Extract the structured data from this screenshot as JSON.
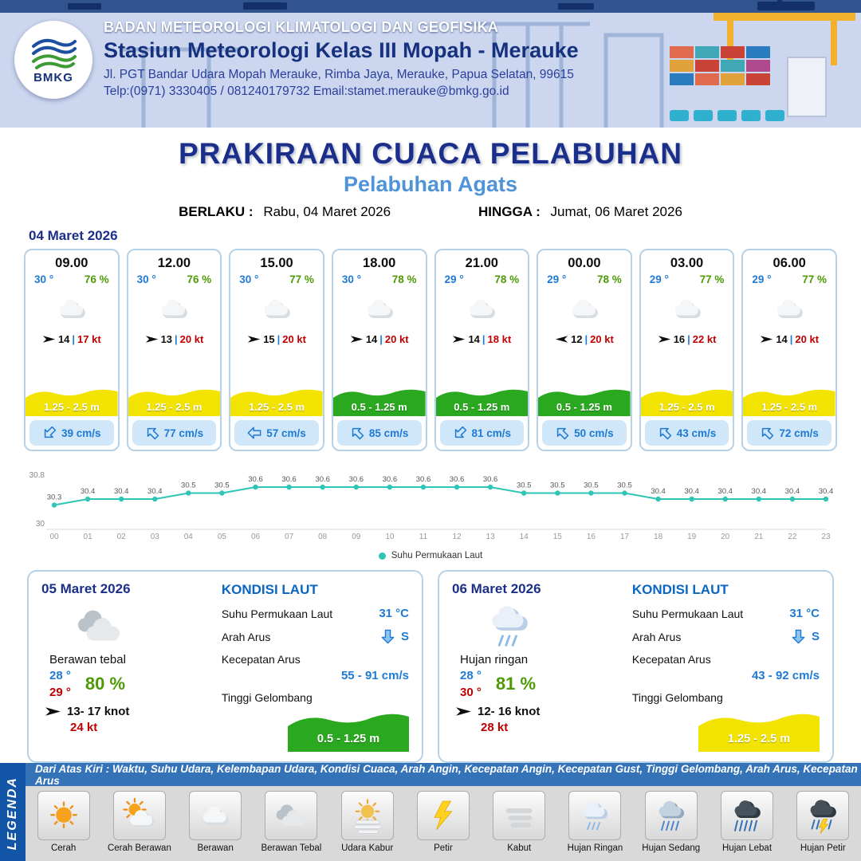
{
  "header": {
    "logo_text": "BMKG",
    "agency": "BADAN METEOROLOGI KLIMATOLOGI DAN GEOFISIKA",
    "station": "Stasiun Meteorologi Kelas III Mopah - Merauke",
    "address": "Jl. PGT Bandar Udara Mopah Merauke, Rimba Jaya, Merauke, Papua Selatan, 99615",
    "contact": "Telp:(0971) 3330405 / 081240179732  Email:stamet.merauke@bmkg.go.id"
  },
  "title": {
    "main": "PRAKIRAAN CUACA PELABUHAN",
    "sub": "Pelabuhan Agats",
    "valid_label": "BERLAKU :",
    "valid_value": "Rabu, 04 Maret 2026",
    "until_label": "HINGGA :",
    "until_value": "Jumat, 06 Maret 2026"
  },
  "forecast": {
    "date": "04 Maret 2026",
    "wind_separator": "|",
    "cards": [
      {
        "time": "09.00",
        "temp": "30 °",
        "humidity": "76 %",
        "wind_speed": "14",
        "wind_gust": "17 kt",
        "wind_dir": "right",
        "wave_value": "1.25 - 2.5 m",
        "wave_hex": "#f2e300",
        "current_value": "39 cm/s",
        "current_deg": 225
      },
      {
        "time": "12.00",
        "temp": "30 °",
        "humidity": "76 %",
        "wind_speed": "13",
        "wind_gust": "20 kt",
        "wind_dir": "right",
        "wave_value": "1.25 - 2.5 m",
        "wave_hex": "#f2e300",
        "current_value": "77 cm/s",
        "current_deg": 315
      },
      {
        "time": "15.00",
        "temp": "30 °",
        "humidity": "77 %",
        "wind_speed": "15",
        "wind_gust": "20 kt",
        "wind_dir": "right",
        "wave_value": "1.25 - 2.5 m",
        "wave_hex": "#f2e300",
        "current_value": "57 cm/s",
        "current_deg": 270
      },
      {
        "time": "18.00",
        "temp": "30 °",
        "humidity": "78 %",
        "wind_speed": "14",
        "wind_gust": "20 kt",
        "wind_dir": "right",
        "wave_value": "0.5 - 1.25 m",
        "wave_hex": "#2aa81f",
        "current_value": "85 cm/s",
        "current_deg": 315
      },
      {
        "time": "21.00",
        "temp": "29 °",
        "humidity": "78 %",
        "wind_speed": "14",
        "wind_gust": "18 kt",
        "wind_dir": "right",
        "wave_value": "0.5 - 1.25 m",
        "wave_hex": "#2aa81f",
        "current_value": "81 cm/s",
        "current_deg": 225
      },
      {
        "time": "00.00",
        "temp": "29 °",
        "humidity": "78 %",
        "wind_speed": "12",
        "wind_gust": "20 kt",
        "wind_dir": "left",
        "wave_value": "0.5 - 1.25 m",
        "wave_hex": "#2aa81f",
        "current_value": "50 cm/s",
        "current_deg": 315
      },
      {
        "time": "03.00",
        "temp": "29 °",
        "humidity": "77 %",
        "wind_speed": "16",
        "wind_gust": "22 kt",
        "wind_dir": "right",
        "wave_value": "1.25 - 2.5 m",
        "wave_hex": "#f2e300",
        "current_value": "43 cm/s",
        "current_deg": 315
      },
      {
        "time": "06.00",
        "temp": "29 °",
        "humidity": "77 %",
        "wind_speed": "14",
        "wind_gust": "20 kt",
        "wind_dir": "right",
        "wave_value": "1.25 - 2.5 m",
        "wave_hex": "#f2e300",
        "current_value": "72 cm/s",
        "current_deg": 315
      }
    ]
  },
  "chart_data": {
    "type": "line",
    "legend_label": "Suhu Permukaan Laut",
    "x": [
      "00",
      "01",
      "02",
      "03",
      "04",
      "05",
      "06",
      "07",
      "08",
      "09",
      "10",
      "11",
      "12",
      "13",
      "14",
      "15",
      "16",
      "17",
      "18",
      "19",
      "20",
      "21",
      "22",
      "23"
    ],
    "values": [
      30.3,
      30.4,
      30.4,
      30.4,
      30.5,
      30.5,
      30.6,
      30.6,
      30.6,
      30.6,
      30.6,
      30.6,
      30.6,
      30.6,
      30.5,
      30.5,
      30.5,
      30.5,
      30.4,
      30.4,
      30.4,
      30.4,
      30.4,
      30.4
    ],
    "ylim": [
      30,
      30.8
    ],
    "y_ticks": [
      "30.8",
      "30"
    ],
    "line_color": "#2ec4b6",
    "grid": false,
    "legend_position": "bottom"
  },
  "days": [
    {
      "date": "05 Maret 2026",
      "icon": "berawan-tebal",
      "condition": "Berawan tebal",
      "temp_min": "28 °",
      "temp_max": "29 °",
      "humidity": "80 %",
      "wind": "13- 17 knot",
      "gust": "24 kt",
      "sea": {
        "heading": "KONDISI LAUT",
        "sst_label": "Suhu Permukaan Laut",
        "sst_value": "31 °C",
        "dir_label": "Arah Arus",
        "dir_value": "S",
        "speed_label": "Kecepatan Arus",
        "speed_value": "55 - 91 cm/s",
        "wave_label": "Tinggi Gelombang",
        "wave_value": "0.5 - 1.25 m",
        "wave_hex": "#2aa81f"
      }
    },
    {
      "date": "06 Maret 2026",
      "icon": "hujan-ringan",
      "condition": "Hujan ringan",
      "temp_min": "28 °",
      "temp_max": "30 °",
      "humidity": "81 %",
      "wind": "12- 16 knot",
      "gust": "28 kt",
      "sea": {
        "heading": "KONDISI LAUT",
        "sst_label": "Suhu Permukaan Laut",
        "sst_value": "31 °C",
        "dir_label": "Arah Arus",
        "dir_value": "S",
        "speed_label": "Kecepatan Arus",
        "speed_value": "43 - 92 cm/s",
        "wave_label": "Tinggi Gelombang",
        "wave_value": "1.25 - 2.5 m",
        "wave_hex": "#f2e300"
      }
    }
  ],
  "legend": {
    "side_label": "LEGENDA",
    "description": "Dari Atas Kiri : Waktu, Suhu Udara, Kelembapan Udara, Kondisi Cuaca, Arah Angin, Kecepatan Angin, Kecepatan Gust, Tinggi Gelombang, Arah Arus, Kecepatan Arus",
    "items": [
      {
        "label": "Cerah",
        "icon": "cerah"
      },
      {
        "label": "Cerah Berawan",
        "icon": "cerah-berawan"
      },
      {
        "label": "Berawan",
        "icon": "berawan"
      },
      {
        "label": "Berawan Tebal",
        "icon": "berawan-tebal"
      },
      {
        "label": "Udara Kabur",
        "icon": "udara-kabur"
      },
      {
        "label": "Petir",
        "icon": "petir"
      },
      {
        "label": "Kabut",
        "icon": "kabut"
      },
      {
        "label": "Hujan Ringan",
        "icon": "hujan-ringan"
      },
      {
        "label": "Hujan Sedang",
        "icon": "hujan-sedang"
      },
      {
        "label": "Hujan Lebat",
        "icon": "hujan-lebat"
      },
      {
        "label": "Hujan Petir",
        "icon": "hujan-petir"
      }
    ]
  }
}
